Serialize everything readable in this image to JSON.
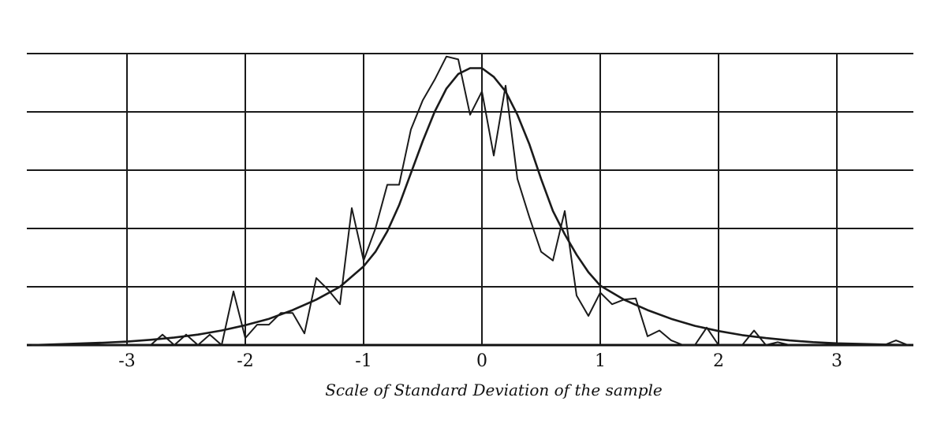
{
  "chart_data": {
    "type": "line",
    "title": "",
    "xlabel": "Scale of Standard Deviation of the sample",
    "ylabel": "",
    "xlim": [
      -3.85,
      3.65
    ],
    "ylim": [
      0,
      5
    ],
    "grid": true,
    "x_ticks": [
      -3,
      -2,
      -1,
      0,
      1,
      2,
      3
    ],
    "x_tick_labels": [
      "-3",
      "-2",
      "-1",
      "0",
      "1",
      "2",
      "3"
    ],
    "y_ticks": [
      0,
      1,
      2,
      3,
      4,
      5
    ],
    "series": [
      {
        "style": "jagged",
        "color": "#1a1a1a",
        "x": [
          -3.8,
          -2.8,
          -2.7,
          -2.6,
          -2.5,
          -2.4,
          -2.3,
          -2.2,
          -2.1,
          -2.0,
          -1.9,
          -1.8,
          -1.7,
          -1.6,
          -1.5,
          -1.4,
          -1.3,
          -1.2,
          -1.1,
          -1.0,
          -0.9,
          -0.8,
          -0.7,
          -0.6,
          -0.5,
          -0.4,
          -0.3,
          -0.2,
          -0.1,
          0.0,
          0.1,
          0.2,
          0.3,
          0.4,
          0.5,
          0.6,
          0.7,
          0.8,
          0.9,
          1.0,
          1.1,
          1.2,
          1.3,
          1.4,
          1.5,
          1.6,
          1.7,
          1.8,
          1.9,
          2.0,
          2.1,
          2.2,
          2.3,
          2.4,
          2.5,
          2.6,
          2.7,
          2.8,
          2.9,
          3.0,
          3.1,
          3.2,
          3.3,
          3.4,
          3.5,
          3.6
        ],
        "y": [
          0.0,
          0.0,
          0.18,
          0.0,
          0.18,
          0.0,
          0.18,
          0.0,
          0.92,
          0.12,
          0.35,
          0.35,
          0.55,
          0.55,
          0.2,
          1.15,
          0.95,
          0.7,
          2.35,
          1.45,
          2.0,
          2.75,
          2.75,
          3.7,
          4.2,
          4.55,
          4.95,
          4.9,
          3.95,
          4.35,
          3.25,
          4.45,
          2.85,
          2.2,
          1.6,
          1.45,
          2.3,
          0.85,
          0.5,
          0.9,
          0.7,
          0.78,
          0.8,
          0.15,
          0.25,
          0.08,
          0.0,
          0.0,
          0.3,
          0.0,
          0.0,
          0.0,
          0.25,
          0.0,
          0.05,
          0.0,
          0.0,
          0.0,
          0.0,
          0.0,
          0.0,
          0.0,
          0.0,
          0.0,
          0.08,
          0.0
        ]
      },
      {
        "style": "smooth",
        "color": "#1a1a1a",
        "x": [
          -3.8,
          -3.5,
          -3.2,
          -3.0,
          -2.8,
          -2.6,
          -2.4,
          -2.2,
          -2.0,
          -1.8,
          -1.6,
          -1.4,
          -1.2,
          -1.0,
          -0.9,
          -0.8,
          -0.7,
          -0.6,
          -0.5,
          -0.4,
          -0.3,
          -0.2,
          -0.1,
          0.0,
          0.1,
          0.2,
          0.3,
          0.4,
          0.5,
          0.6,
          0.7,
          0.8,
          0.9,
          1.0,
          1.2,
          1.4,
          1.6,
          1.8,
          2.0,
          2.2,
          2.4,
          2.6,
          2.8,
          3.0,
          3.2,
          3.4,
          3.6
        ],
        "y": [
          0.0,
          0.02,
          0.04,
          0.06,
          0.09,
          0.13,
          0.18,
          0.25,
          0.34,
          0.45,
          0.6,
          0.78,
          1.0,
          1.35,
          1.6,
          1.95,
          2.4,
          2.95,
          3.5,
          4.0,
          4.4,
          4.65,
          4.75,
          4.75,
          4.6,
          4.35,
          3.95,
          3.45,
          2.85,
          2.3,
          1.9,
          1.55,
          1.25,
          1.02,
          0.78,
          0.6,
          0.45,
          0.33,
          0.24,
          0.17,
          0.12,
          0.08,
          0.05,
          0.03,
          0.02,
          0.01,
          0.0
        ]
      }
    ]
  }
}
